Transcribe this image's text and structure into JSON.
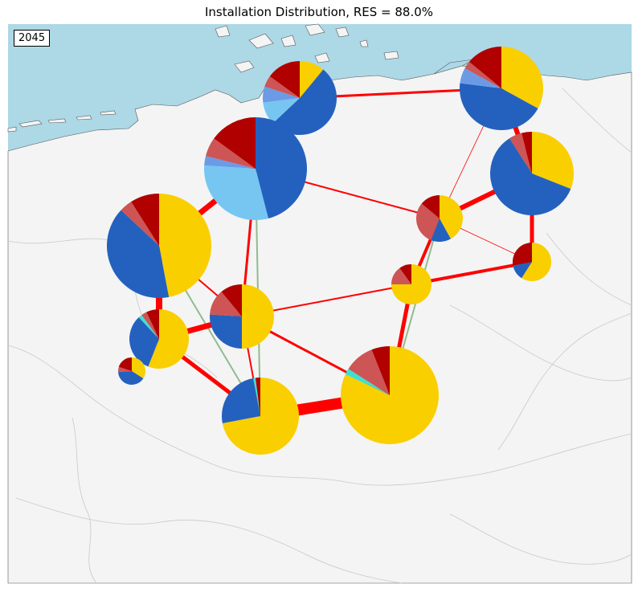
{
  "title": "Installation Distribution, RES = 88.0%",
  "year": "2045",
  "colors": {
    "sea": "#add8e6",
    "land": "#f4f4f4",
    "ac_line": "#ff0000",
    "dc_line": "#8fbc8f",
    "techs": {
      "solar": "#f9cf00",
      "onwind": "#2461be",
      "offwind": "#77c6f2",
      "hydro": "#6c9be6",
      "battery": "#40e0d0",
      "gas": "#cd5555",
      "coal": "#b00000"
    }
  },
  "nodes": [
    {
      "id": "n-north-west",
      "share": {
        "solar": 0.11,
        "onwind": 0.52,
        "offwind": 0.1,
        "hydro": 0.07,
        "gas": 0.05,
        "coal": 0.15
      }
    },
    {
      "id": "n-north-east",
      "share": {
        "solar": 0.33,
        "onwind": 0.44,
        "hydro": 0.06,
        "gas": 0.03,
        "coal": 0.14
      }
    },
    {
      "id": "n-east",
      "share": {
        "solar": 0.31,
        "onwind": 0.6,
        "gas": 0.05,
        "coal": 0.04
      }
    },
    {
      "id": "n-west-coast",
      "share": {
        "onwind": 0.46,
        "offwind": 0.3,
        "hydro": 0.03,
        "gas": 0.06,
        "coal": 0.15
      }
    },
    {
      "id": "n-central",
      "share": {
        "solar": 0.42,
        "onwind": 0.14,
        "gas": 0.3,
        "coal": 0.14
      }
    },
    {
      "id": "n-central-east",
      "share": {
        "solar": 0.59,
        "onwind": 0.13,
        "coal": 0.28
      }
    },
    {
      "id": "n-ruhr",
      "share": {
        "solar": 0.47,
        "onwind": 0.4,
        "gas": 0.04,
        "coal": 0.09
      }
    },
    {
      "id": "n-hesse",
      "share": {
        "solar": 0.5,
        "onwind": 0.26,
        "gas": 0.13,
        "coal": 0.11
      }
    },
    {
      "id": "n-thuringia",
      "share": {
        "solar": 0.75,
        "gas": 0.15,
        "coal": 0.1
      }
    },
    {
      "id": "n-rhineland",
      "share": {
        "solar": 0.56,
        "onwind": 0.32,
        "battery": 0.02,
        "gas": 0.03,
        "coal": 0.07
      }
    },
    {
      "id": "n-saar",
      "share": {
        "solar": 0.34,
        "onwind": 0.4,
        "gas": 0.06,
        "coal": 0.2
      }
    },
    {
      "id": "n-baden",
      "share": {
        "solar": 0.72,
        "onwind": 0.25,
        "battery": 0.01,
        "coal": 0.02
      }
    },
    {
      "id": "n-bavaria",
      "share": {
        "solar": 0.82,
        "battery": 0.02,
        "gas": 0.1,
        "coal": 0.06
      }
    }
  ]
}
